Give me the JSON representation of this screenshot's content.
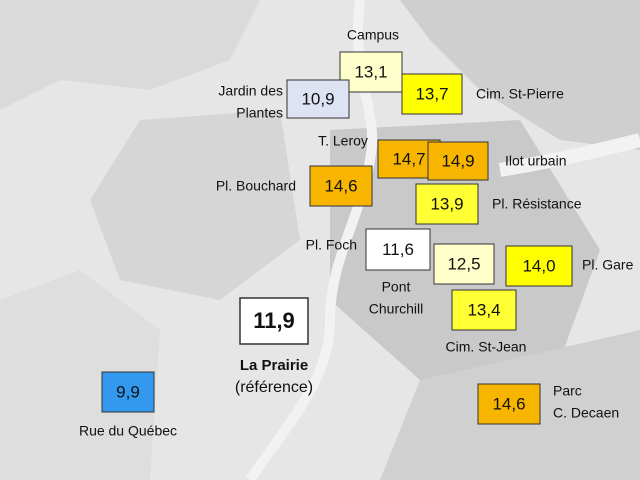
{
  "stations": [
    {
      "label": [
        "Campus"
      ],
      "value": "13,1",
      "color": "#ffffcc"
    },
    {
      "label": [
        "Jardin des",
        "Plantes"
      ],
      "value": "10,9",
      "color": "#dde3f2"
    },
    {
      "label": [
        "Cim. St-Pierre"
      ],
      "value": "13,7",
      "color": "#ffff00"
    },
    {
      "label": [
        "T. Leroy"
      ],
      "value": "14,7",
      "color": "#f7b500"
    },
    {
      "label": [
        "Ilot urbain"
      ],
      "value": "14,9",
      "color": "#f7b500"
    },
    {
      "label": [
        "Pl. Bouchard"
      ],
      "value": "14,6",
      "color": "#f7b500"
    },
    {
      "label": [
        "Pl. Résistance"
      ],
      "value": "13,9",
      "color": "#ffff33"
    },
    {
      "label": [
        "Pl. Foch"
      ],
      "value": "11,6",
      "color": "#ffffff"
    },
    {
      "label": [
        "Pont",
        "Churchill"
      ],
      "value": "12,5",
      "color": "#ffffcc"
    },
    {
      "label": [
        "Pl. Gare"
      ],
      "value": "14,0",
      "color": "#ffff00"
    },
    {
      "label": [
        "Cim. St-Jean"
      ],
      "value": "13,4",
      "color": "#ffff33"
    },
    {
      "label": [
        "La Prairie",
        "(référence)"
      ],
      "value": "11,9",
      "color": "#ffffff"
    },
    {
      "label": [
        "Rue du Québec"
      ],
      "value": "9,9",
      "color": "#3399ee"
    },
    {
      "label": [
        "Parc",
        "C. Decaen"
      ],
      "value": "14,6",
      "color": "#f7b500"
    }
  ]
}
